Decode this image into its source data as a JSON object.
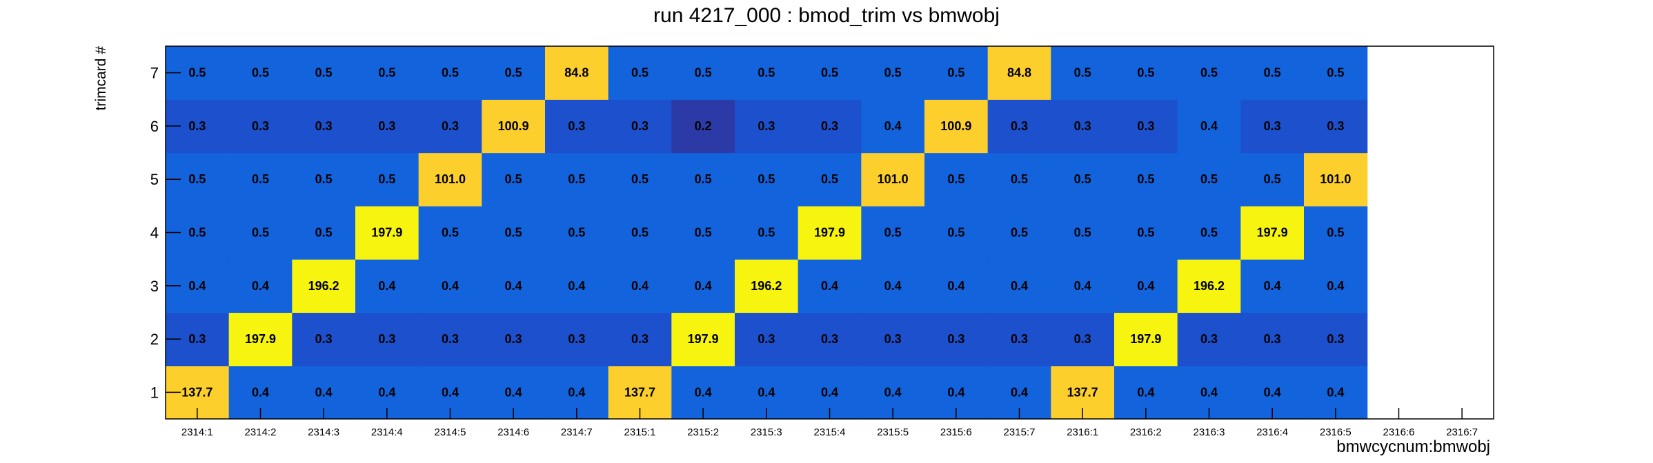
{
  "chart_data": {
    "type": "heatmap",
    "title": "run 4217_000 : bmod_trim vs bmwobj",
    "xlabel": "bmwcycnum:bmwobj",
    "ylabel": "trimcard #",
    "x_categories": [
      "2314:1",
      "2314:2",
      "2314:3",
      "2314:4",
      "2314:5",
      "2314:6",
      "2314:7",
      "2315:1",
      "2315:2",
      "2315:3",
      "2315:4",
      "2315:5",
      "2315:6",
      "2315:7",
      "2316:1",
      "2316:2",
      "2316:3",
      "2316:4",
      "2316:5",
      "2316:6",
      "2316:7"
    ],
    "y_categories": [
      "1",
      "2",
      "3",
      "4",
      "5",
      "6",
      "7"
    ],
    "grid": false,
    "zlim": [
      0,
      210
    ],
    "values": [
      [
        "137.7",
        "0.4",
        "0.4",
        "0.4",
        "0.4",
        "0.4",
        "0.4",
        "137.7",
        "0.4",
        "0.4",
        "0.4",
        "0.4",
        "0.4",
        "0.4",
        "137.7",
        "0.4",
        "0.4",
        "0.4",
        "0.4",
        null,
        null
      ],
      [
        "0.3",
        "197.9",
        "0.3",
        "0.3",
        "0.3",
        "0.3",
        "0.3",
        "0.3",
        "197.9",
        "0.3",
        "0.3",
        "0.3",
        "0.3",
        "0.3",
        "0.3",
        "197.9",
        "0.3",
        "0.3",
        "0.3",
        null,
        null
      ],
      [
        "0.4",
        "0.4",
        "196.2",
        "0.4",
        "0.4",
        "0.4",
        "0.4",
        "0.4",
        "0.4",
        "196.2",
        "0.4",
        "0.4",
        "0.4",
        "0.4",
        "0.4",
        "0.4",
        "196.2",
        "0.4",
        "0.4",
        null,
        null
      ],
      [
        "0.5",
        "0.5",
        "0.5",
        "197.9",
        "0.5",
        "0.5",
        "0.5",
        "0.5",
        "0.5",
        "0.5",
        "197.9",
        "0.5",
        "0.5",
        "0.5",
        "0.5",
        "0.5",
        "0.5",
        "197.9",
        "0.5",
        null,
        null
      ],
      [
        "0.5",
        "0.5",
        "0.5",
        "0.5",
        "101.0",
        "0.5",
        "0.5",
        "0.5",
        "0.5",
        "0.5",
        "0.5",
        "101.0",
        "0.5",
        "0.5",
        "0.5",
        "0.5",
        "0.5",
        "0.5",
        "101.0",
        null,
        null
      ],
      [
        "0.3",
        "0.3",
        "0.3",
        "0.3",
        "0.3",
        "100.9",
        "0.3",
        "0.3",
        "0.2",
        "0.3",
        "0.3",
        "0.4",
        "100.9",
        "0.3",
        "0.3",
        "0.3",
        "0.4",
        "0.3",
        "0.3",
        null,
        null
      ],
      [
        "0.5",
        "0.5",
        "0.5",
        "0.5",
        "0.5",
        "0.5",
        "84.8",
        "0.5",
        "0.5",
        "0.5",
        "0.5",
        "0.5",
        "0.5",
        "84.8",
        "0.5",
        "0.5",
        "0.5",
        "0.5",
        "0.5",
        null,
        null
      ]
    ],
    "colors": {
      "base": "#1363dd",
      "low": "#1d50cc",
      "lowest": "#2b3aa6",
      "mid": "#fccf2c",
      "high": "#f7f40f",
      "frame": "#000000",
      "background": "#ffffff"
    }
  }
}
